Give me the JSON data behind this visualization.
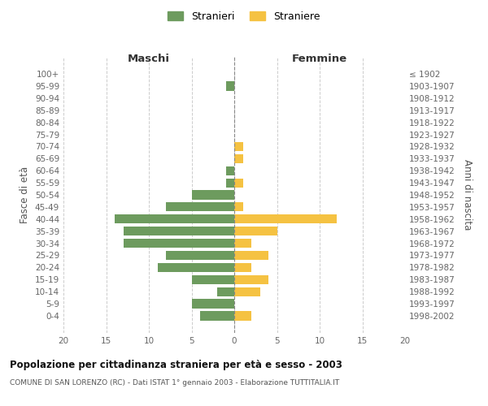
{
  "age_groups": [
    "100+",
    "95-99",
    "90-94",
    "85-89",
    "80-84",
    "75-79",
    "70-74",
    "65-69",
    "60-64",
    "55-59",
    "50-54",
    "45-49",
    "40-44",
    "35-39",
    "30-34",
    "25-29",
    "20-24",
    "15-19",
    "10-14",
    "5-9",
    "0-4"
  ],
  "birth_years": [
    "≤ 1902",
    "1903-1907",
    "1908-1912",
    "1913-1917",
    "1918-1922",
    "1923-1927",
    "1928-1932",
    "1933-1937",
    "1938-1942",
    "1943-1947",
    "1948-1952",
    "1953-1957",
    "1958-1962",
    "1963-1967",
    "1968-1972",
    "1973-1977",
    "1978-1982",
    "1983-1987",
    "1988-1992",
    "1993-1997",
    "1998-2002"
  ],
  "maschi": [
    0,
    1,
    0,
    0,
    0,
    0,
    0,
    0,
    1,
    1,
    5,
    8,
    14,
    13,
    13,
    8,
    9,
    5,
    2,
    5,
    4
  ],
  "femmine": [
    0,
    0,
    0,
    0,
    0,
    0,
    1,
    1,
    0,
    1,
    0,
    1,
    12,
    5,
    2,
    4,
    2,
    4,
    3,
    0,
    2
  ],
  "maschi_color": "#6d9b5e",
  "femmine_color": "#f5c242",
  "xlim": 20,
  "title": "Popolazione per cittadinanza straniera per età e sesso - 2003",
  "subtitle": "COMUNE DI SAN LORENZO (RC) - Dati ISTAT 1° gennaio 2003 - Elaborazione TUTTITALIA.IT",
  "ylabel_left": "Fasce di età",
  "ylabel_right": "Anni di nascita",
  "xlabel_left": "Maschi",
  "xlabel_right": "Femmine",
  "legend_stranieri": "Stranieri",
  "legend_straniere": "Straniere",
  "bg_color": "#ffffff",
  "grid_color": "#cccccc"
}
